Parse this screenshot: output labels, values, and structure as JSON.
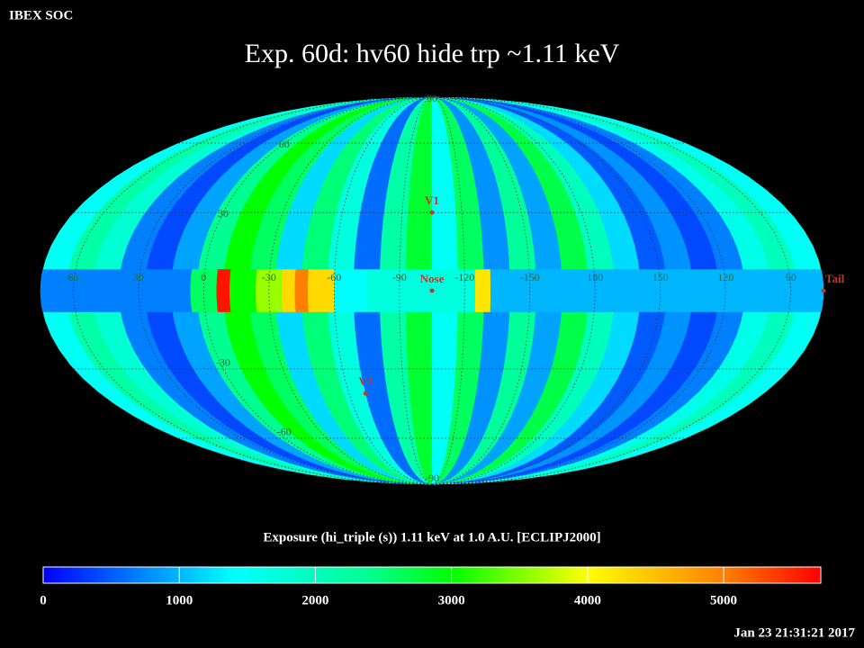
{
  "header": "IBEX SOC",
  "title": "Exp.   60d: hv60 hide trp ~1.11 keV",
  "map": {
    "lon_range": [
      75,
      -285
    ],
    "strips": [
      1500,
      2200,
      1800,
      700,
      400,
      900,
      2400,
      3000,
      2600,
      1200,
      2500,
      1700,
      600,
      2200,
      2800,
      1500,
      2600,
      800,
      2300,
      900,
      2700,
      2000,
      1200,
      500,
      800,
      400,
      700,
      1600,
      2000,
      1500
    ],
    "band": {
      "lat": [
        -8,
        8
      ],
      "cells": [
        {
          "lon": [
            75,
            6
          ],
          "value": 700
        },
        {
          "lon": [
            6,
            -6
          ],
          "value": 2600
        },
        {
          "lon": [
            -6,
            -12
          ],
          "value": 5600
        },
        {
          "lon": [
            -12,
            -24
          ],
          "value": 3000
        },
        {
          "lon": [
            -24,
            -36
          ],
          "value": 3600
        },
        {
          "lon": [
            -36,
            -42
          ],
          "value": 4300
        },
        {
          "lon": [
            -42,
            -48
          ],
          "value": 5000
        },
        {
          "lon": [
            -48,
            -60
          ],
          "value": 4300
        },
        {
          "lon": [
            -60,
            -75
          ],
          "value": 1400
        },
        {
          "lon": [
            -75,
            -125
          ],
          "value": 1700
        },
        {
          "lon": [
            -125,
            -132
          ],
          "value": 4200
        },
        {
          "lon": [
            -132,
            -285
          ],
          "value": 1000
        }
      ]
    },
    "lon_ticks": [
      60,
      30,
      0,
      -30,
      -60,
      -90,
      -120,
      -150,
      {
        "value": -180,
        "label": "180"
      },
      {
        "value": -210,
        "label": "150"
      },
      {
        "value": -240,
        "label": "120"
      },
      {
        "value": -270,
        "label": "90"
      }
    ],
    "lat_ticks": [
      -90,
      -60,
      -30,
      30,
      60,
      90
    ],
    "markers": [
      {
        "label": "V1",
        "lon": -105,
        "lat": 30
      },
      {
        "label": "Nose",
        "lon": -105,
        "lat": 0
      },
      {
        "label": "V2",
        "lon": -69,
        "lat": -40
      },
      {
        "label": "Tail",
        "lon": -285,
        "lat": 0
      }
    ],
    "marker_color": "#c0392b"
  },
  "colorbar": {
    "label": "Exposure (hi_triple (s))  1.11 keV at 1.0 A.U. [ECLIPJ2000]",
    "range": [
      0,
      5714
    ],
    "ticks": [
      0,
      1000,
      2000,
      3000,
      4000,
      5000
    ],
    "colormap": [
      {
        "value": 0,
        "color": "#0000ff"
      },
      {
        "value": 1400,
        "color": "#00ffff"
      },
      {
        "value": 2400,
        "color": "#00ff90"
      },
      {
        "value": 3000,
        "color": "#00ff00"
      },
      {
        "value": 4000,
        "color": "#ffff00"
      },
      {
        "value": 5000,
        "color": "#ff8000"
      },
      {
        "value": 5714,
        "color": "#ff0000"
      }
    ]
  },
  "timestamp": "Jan 23 21:31:21 2017"
}
